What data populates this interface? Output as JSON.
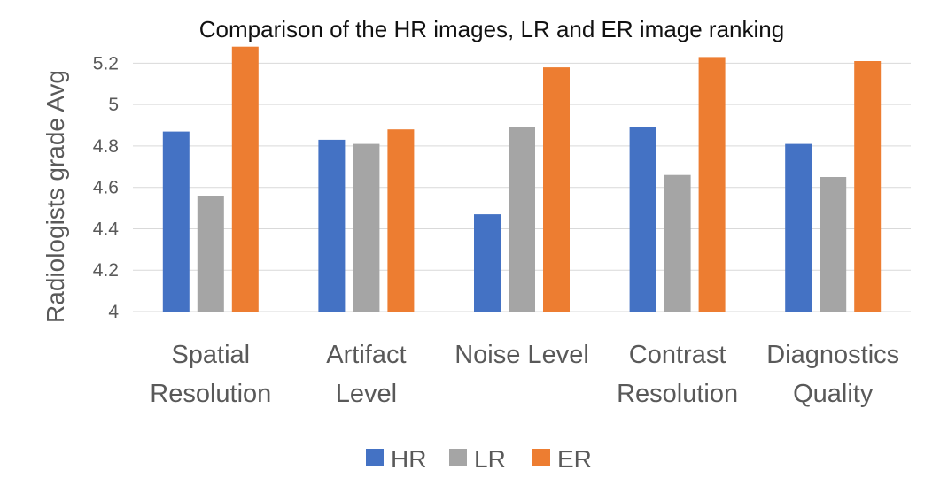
{
  "chart_data": {
    "type": "bar",
    "title": "Comparison of the HR images, LR and ER image ranking",
    "xlabel": "",
    "ylabel": "Radiologists grade Avg",
    "ylim": [
      4,
      5.3
    ],
    "yticks": [
      "4",
      "4.2",
      "4.4",
      "4.6",
      "4.8",
      "5",
      "5.2"
    ],
    "categories": [
      [
        "Spatial",
        "Resolution"
      ],
      [
        "Artifact",
        "Level"
      ],
      [
        "Noise Level"
      ],
      [
        "Contrast",
        "Resolution"
      ],
      [
        "Diagnostics",
        "Quality"
      ]
    ],
    "series": [
      {
        "name": "HR",
        "color": "#4472C4",
        "values": [
          4.87,
          4.83,
          4.47,
          4.89,
          4.81
        ]
      },
      {
        "name": "LR",
        "color": "#A5A5A5",
        "values": [
          4.56,
          4.81,
          4.89,
          4.66,
          4.65
        ]
      },
      {
        "name": "ER",
        "color": "#ED7D31",
        "values": [
          5.28,
          4.88,
          5.18,
          5.23,
          5.21
        ]
      }
    ],
    "grid": true,
    "legend_position": "bottom"
  }
}
